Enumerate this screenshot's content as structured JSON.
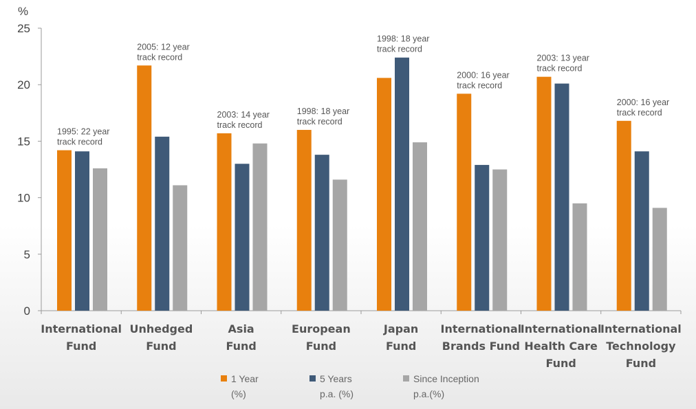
{
  "chart_data": {
    "type": "bar",
    "ylabel": "%",
    "ylim": [
      0,
      25
    ],
    "yticks": [
      0,
      5,
      10,
      15,
      20,
      25
    ],
    "categories": [
      [
        "International",
        "Fund"
      ],
      [
        "Unhedged",
        "Fund"
      ],
      [
        "Asia",
        "Fund"
      ],
      [
        "European",
        "Fund"
      ],
      [
        "Japan",
        "Fund"
      ],
      [
        "International",
        "Brands Fund"
      ],
      [
        "International",
        "Health Care",
        "Fund"
      ],
      [
        "International",
        "Technology",
        "Fund"
      ]
    ],
    "annotations": [
      [
        "1995: 22 year",
        "track record"
      ],
      [
        "2005: 12 year",
        "track record"
      ],
      [
        "2003: 14 year",
        "track record"
      ],
      [
        "1998: 18 year",
        "track record"
      ],
      [
        "1998: 18 year",
        "track record"
      ],
      [
        "2000: 16 year",
        "track record"
      ],
      [
        "2003: 13 year",
        "track record"
      ],
      [
        "2000: 16 year",
        "track record"
      ]
    ],
    "series": [
      {
        "name": [
          "1 Year",
          "(%)"
        ],
        "color": "#e8800e",
        "values": [
          14.2,
          21.7,
          15.7,
          16.0,
          20.6,
          19.2,
          20.7,
          16.8
        ]
      },
      {
        "name": [
          "5 Years",
          "p.a. (%)"
        ],
        "color": "#3f5a78",
        "values": [
          14.1,
          15.4,
          13.0,
          13.8,
          22.4,
          12.9,
          20.1,
          14.1
        ]
      },
      {
        "name": [
          "Since Inception",
          "p.a.(%)"
        ],
        "color": "#a6a6a6",
        "values": [
          12.6,
          11.1,
          14.8,
          11.6,
          14.9,
          12.5,
          9.5,
          9.1
        ]
      }
    ],
    "legend_position": "bottom",
    "grid": false
  }
}
